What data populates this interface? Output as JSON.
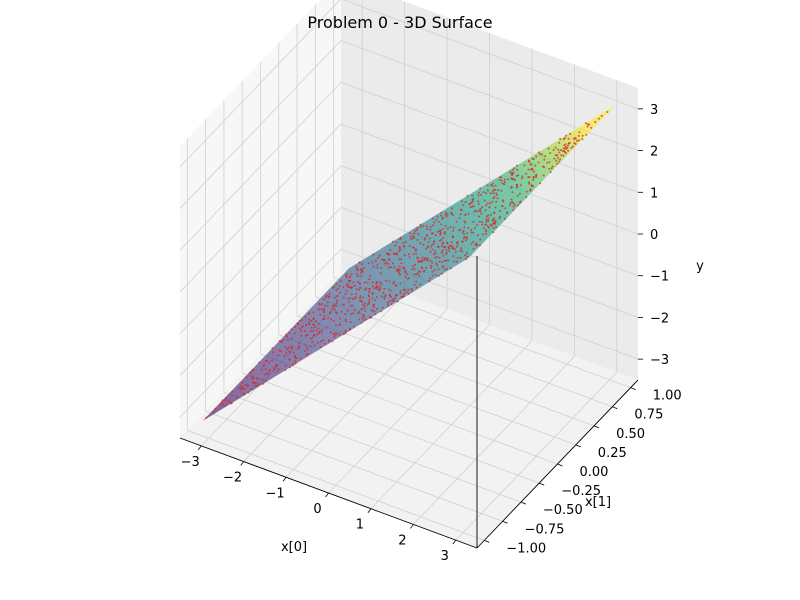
{
  "chart_data": {
    "type": "surface3d",
    "title": "Problem 0 - 3D Surface",
    "xlabel": "x[0]",
    "ylabel": "x[1]",
    "zlabel": "y",
    "x_ticks": [
      "−3",
      "−2",
      "−1",
      "0",
      "1",
      "2",
      "3"
    ],
    "x_tick_values": [
      -3,
      -2,
      -1,
      0,
      1,
      2,
      3
    ],
    "y_ticks": [
      "−1.00",
      "−0.75",
      "−0.50",
      "−0.25",
      "0.00",
      "0.25",
      "0.50",
      "0.75",
      "1.00"
    ],
    "y_tick_values": [
      -1,
      -0.75,
      -0.5,
      -0.25,
      0,
      0.25,
      0.5,
      0.75,
      1
    ],
    "z_ticks": [
      "−3",
      "−2",
      "−1",
      "0",
      "1",
      "2",
      "3"
    ],
    "z_tick_values": [
      -3,
      -2,
      -1,
      0,
      1,
      2,
      3
    ],
    "xlim": [
      -3.5,
      3.5
    ],
    "ylim": [
      -1.1,
      1.1
    ],
    "zlim": [
      -3.5,
      3.5
    ],
    "surface": {
      "function": "y = x[0]",
      "colormap": "viridis",
      "corners": [
        {
          "x0": -3.14,
          "x1": -1,
          "y": -3.14
        },
        {
          "x0": 3.14,
          "x1": -1,
          "y": 3.14
        },
        {
          "x0": 3.14,
          "x1": 1,
          "y": 3.14
        },
        {
          "x0": -3.14,
          "x1": 1,
          "y": -3.14
        }
      ]
    },
    "scatter": {
      "color": "#d62728",
      "count": 1000,
      "x0_range": [
        -3.14,
        3.14
      ],
      "x1_range": [
        -1,
        1
      ],
      "description": "points lying on the surface y = x[0]"
    },
    "grid": true,
    "pane_color": "#f2f2f2"
  }
}
